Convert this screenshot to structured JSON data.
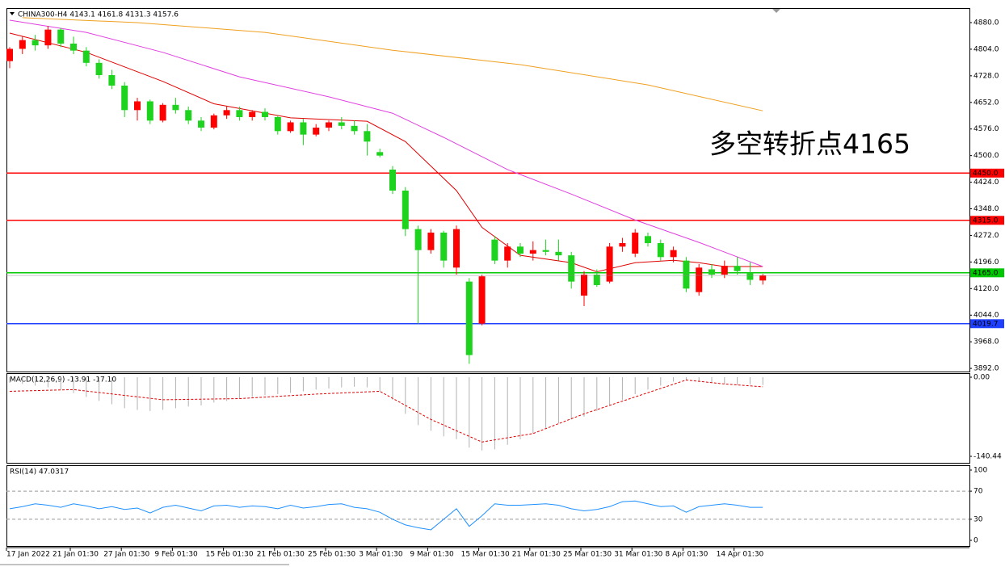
{
  "chart_data": [
    {
      "type": "candlestick",
      "title": "CHINA300-H4  4143.1 4161.8 4131.3 4157.6",
      "annotation": "多空转折点4165",
      "categories": [
        "17 Jan 2022",
        null,
        null,
        null,
        null,
        "21 Jan 01:30",
        null,
        null,
        null,
        "27 Jan 01:30",
        null,
        null,
        null,
        "9 Feb 01:30",
        null,
        null,
        null,
        "15 Feb 01:30",
        null,
        null,
        null,
        "21 Feb 01:30",
        null,
        null,
        null,
        "25 Feb 01:30",
        null,
        null,
        null,
        "3 Mar 01:30",
        null,
        null,
        null,
        "9 Mar 01:30",
        null,
        null,
        null,
        "15 Mar 01:30",
        null,
        null,
        null,
        "21 Mar 01:30",
        null,
        null,
        null,
        "25 Mar 01:30",
        null,
        null,
        null,
        "31 Mar 01:30",
        null,
        null,
        null,
        "8 Apr 01:30",
        null,
        null,
        null,
        "14 Apr 01:30",
        null,
        null
      ],
      "open": [
        4770,
        4805,
        4830,
        4815,
        4860,
        4820,
        4800,
        4765,
        4730,
        4700,
        4630,
        4655,
        4600,
        4645,
        4630,
        4600,
        4580,
        4615,
        4630,
        4610,
        4625,
        4610,
        4570,
        4595,
        4560,
        4580,
        4595,
        4585,
        4570,
        4510,
        4460,
        4400,
        4290,
        4230,
        4280,
        4180,
        4140,
        4020,
        4260,
        4200,
        4240,
        4220,
        4230,
        4225,
        4215,
        4100,
        4160,
        4140,
        4240,
        4220,
        4270,
        4250,
        4210,
        4200,
        4110,
        4175,
        4160,
        4185,
        4165,
        4143.1
      ],
      "high": [
        4810,
        4840,
        4845,
        4870,
        4865,
        4840,
        4810,
        4775,
        4745,
        4710,
        4665,
        4660,
        4650,
        4665,
        4640,
        4610,
        4620,
        4640,
        4640,
        4630,
        4635,
        4615,
        4600,
        4605,
        4590,
        4600,
        4610,
        4600,
        4590,
        4520,
        4470,
        4410,
        4300,
        4290,
        4285,
        4300,
        4150,
        4160,
        4270,
        4250,
        4250,
        4255,
        4260,
        4260,
        4225,
        4170,
        4175,
        4250,
        4265,
        4290,
        4280,
        4260,
        4240,
        4210,
        4190,
        4190,
        4200,
        4210,
        4195,
        4161.8
      ],
      "low": [
        4750,
        4790,
        4800,
        4805,
        4810,
        4790,
        4755,
        4720,
        4690,
        4610,
        4600,
        4590,
        4595,
        4620,
        4590,
        4570,
        4575,
        4605,
        4600,
        4600,
        4600,
        4560,
        4565,
        4530,
        4555,
        4570,
        4575,
        4560,
        4500,
        4495,
        4390,
        4270,
        4020,
        4220,
        4180,
        4160,
        3905,
        4015,
        4190,
        4180,
        4210,
        4200,
        4215,
        4200,
        4120,
        4070,
        4125,
        4135,
        4225,
        4210,
        4240,
        4200,
        4195,
        4110,
        4100,
        4150,
        4150,
        4160,
        4130,
        4131.3
      ],
      "close": [
        4805,
        4830,
        4815,
        4860,
        4820,
        4800,
        4765,
        4730,
        4700,
        4630,
        4655,
        4600,
        4645,
        4630,
        4600,
        4580,
        4615,
        4630,
        4610,
        4625,
        4610,
        4570,
        4595,
        4560,
        4580,
        4595,
        4585,
        4570,
        4540,
        4500,
        4400,
        4290,
        4230,
        4280,
        4200,
        4290,
        3930,
        4155,
        4200,
        4240,
        4220,
        4230,
        4225,
        4215,
        4140,
        4160,
        4130,
        4240,
        4250,
        4280,
        4250,
        4210,
        4230,
        4120,
        4180,
        4160,
        4185,
        4170,
        4145,
        4157.6
      ],
      "up_color": "#ff0000",
      "down_color": "#1ed31e",
      "moving_averages": [
        {
          "color": "#e00000",
          "x": [
            0,
            6,
            12,
            16,
            22,
            28,
            31,
            35,
            37,
            40,
            44,
            46,
            49,
            52,
            54,
            56,
            59
          ],
          "values": [
            4850,
            4795,
            4712,
            4648,
            4608,
            4598,
            4540,
            4400,
            4295,
            4215,
            4194,
            4168,
            4194,
            4201,
            4194,
            4183,
            4183
          ]
        },
        {
          "color": "#e040e0",
          "x": [
            0,
            6,
            12,
            18,
            25,
            30,
            34,
            39,
            44,
            49,
            54,
            59
          ],
          "values": [
            4887,
            4852,
            4795,
            4725,
            4668,
            4621,
            4552,
            4460,
            4390,
            4316,
            4252,
            4183
          ]
        },
        {
          "color": "#f0a020",
          "x": [
            1,
            10,
            20,
            30,
            40,
            50,
            59
          ],
          "values": [
            4894,
            4880,
            4852,
            4801,
            4760,
            4702,
            4628
          ]
        }
      ],
      "levels": [
        {
          "value": 4450,
          "label": "4450.0",
          "color": "#ff0000"
        },
        {
          "value": 4315,
          "label": "4315.0",
          "color": "#ff0000"
        },
        {
          "value": 4165,
          "label": "4165.0",
          "color": "#00c800"
        },
        {
          "value": 4019.7,
          "label": "4019.7",
          "color": "#2040ff"
        }
      ],
      "ylim": [
        3883,
        4921.5
      ],
      "yticks": [
        {
          "value": 4880,
          "label": "4880.0"
        },
        {
          "value": 4804,
          "label": "4804.0"
        },
        {
          "value": 4728,
          "label": "4728.0"
        },
        {
          "value": 4652,
          "label": "4652.0"
        },
        {
          "value": 4576,
          "label": "4576.0"
        },
        {
          "value": 4500,
          "label": "4500.0"
        },
        {
          "value": 4424,
          "label": "4424.0"
        },
        {
          "value": 4348,
          "label": "4348.0"
        },
        {
          "value": 4272,
          "label": "4272.0"
        },
        {
          "value": 4196,
          "label": "4196.0"
        },
        {
          "value": 4120,
          "label": "4120.0"
        },
        {
          "value": 4044,
          "label": "4044.0"
        },
        {
          "value": 3968,
          "label": "3968.0"
        },
        {
          "value": 3892,
          "label": "3892.0"
        }
      ]
    },
    {
      "type": "macd",
      "title": "MACD(12,26,9) -13.91 -17.10",
      "values": [
        -10,
        -12,
        -15,
        -18,
        -22,
        -28,
        -35,
        -42,
        -48,
        -55,
        -58,
        -60,
        -58,
        -55,
        -52,
        -50,
        -45,
        -42,
        -38,
        -35,
        -32,
        -30,
        -28,
        -25,
        -22,
        -20,
        -18,
        -17,
        -18,
        -25,
        -40,
        -65,
        -85,
        -95,
        -105,
        -110,
        -125,
        -130,
        -128,
        -120,
        -110,
        -100,
        -90,
        -82,
        -75,
        -70,
        -60,
        -50,
        -40,
        -30,
        -22,
        -15,
        -8,
        -5,
        -8,
        -10,
        -12,
        -14,
        -13,
        -13.91
      ],
      "color": "#b0b0b0",
      "signal": {
        "color": "#e00000",
        "x": [
          0,
          5,
          12,
          18,
          24,
          29,
          33,
          37,
          41,
          45,
          49,
          53,
          56,
          59
        ],
        "values": [
          -25,
          -22,
          -40,
          -38,
          -30,
          -25,
          -75,
          -115,
          -100,
          -65,
          -35,
          -5,
          -12,
          -17.1
        ]
      },
      "ylim": [
        -151.9,
        7.17
      ],
      "yticks": [
        {
          "value": 0,
          "label": "0.00"
        },
        {
          "value": -140.44,
          "label": "-140.44"
        }
      ]
    },
    {
      "type": "line",
      "title": "RSI(14) 47.0317",
      "values": [
        45,
        48,
        52,
        50,
        47,
        52,
        49,
        45,
        48,
        44,
        46,
        39,
        47,
        50,
        46,
        42,
        49,
        50,
        47,
        49,
        48,
        45,
        50,
        46,
        48,
        51,
        52,
        47,
        45,
        40,
        30,
        22,
        18,
        15,
        30,
        45,
        20,
        35,
        52,
        50,
        50,
        51,
        52,
        50,
        45,
        42,
        44,
        48,
        55,
        56,
        52,
        48,
        49,
        40,
        48,
        50,
        52,
        50,
        47,
        47.0317
      ],
      "color": "#1e90ff",
      "levels": [
        70,
        30
      ],
      "ylim": [
        -8.05,
        106.9
      ],
      "yticks": [
        100,
        70,
        30,
        0
      ]
    }
  ]
}
